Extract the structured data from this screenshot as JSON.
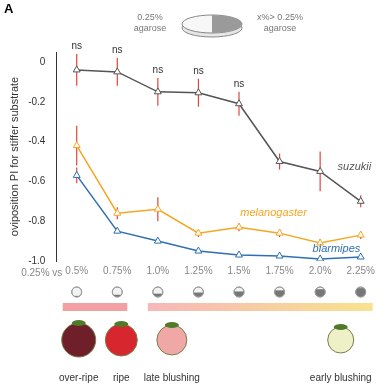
{
  "chart_data": {
    "type": "line",
    "y_label": "oviposition PI for stiffer substrate",
    "categories": [
      "0.5%",
      "0.75%",
      "1.0%",
      "1.25%",
      "1.5%",
      "1.75%",
      "2.0%",
      "2.25%"
    ],
    "series": [
      {
        "name": "suzukii",
        "color": "#555555",
        "marker": "triangle",
        "values": [
          -0.04,
          -0.05,
          -0.15,
          -0.155,
          -0.21,
          -0.5,
          -0.55,
          -0.7
        ],
        "errors": [
          0.08,
          0.07,
          0.07,
          0.07,
          0.06,
          0.04,
          0.1,
          0.03
        ],
        "significance": [
          "ns",
          "ns",
          "ns",
          "ns",
          "ns",
          null,
          null,
          null
        ]
      },
      {
        "name": "melanogaster",
        "color": "#f5a623",
        "marker": "triangle",
        "values": [
          -0.42,
          -0.76,
          -0.74,
          -0.86,
          -0.83,
          -0.86,
          -0.91,
          -0.87
        ],
        "errors": [
          0.1,
          0.03,
          0.06,
          0.02,
          0.02,
          0.02,
          0.02,
          0.02
        ]
      },
      {
        "name": "biarmipes",
        "color": "#2f6fb5",
        "marker": "triangle",
        "values": [
          -0.57,
          -0.85,
          -0.9,
          -0.95,
          -0.97,
          -0.975,
          -0.99,
          -0.98
        ],
        "errors": [
          0.04,
          0.01,
          0.01,
          0.01,
          0.01,
          0.01,
          0.01,
          0.01
        ]
      }
    ],
    "ylim": [
      -1.0,
      0.05
    ],
    "yticks": [
      {
        "value": -1.0,
        "label": "-1.0"
      },
      -0.8,
      -0.6,
      -0.4,
      -0.2,
      0
    ],
    "grid": false,
    "annotations": {
      "panel": "A",
      "dish_left": "0.25%\nagarose",
      "dish_right": "x%> 0.25%\nagarose",
      "x_prefix": "0.25% vs",
      "fruit_labels": [
        "over-ripe",
        "ripe",
        "late blushing",
        "early blushing"
      ]
    }
  }
}
